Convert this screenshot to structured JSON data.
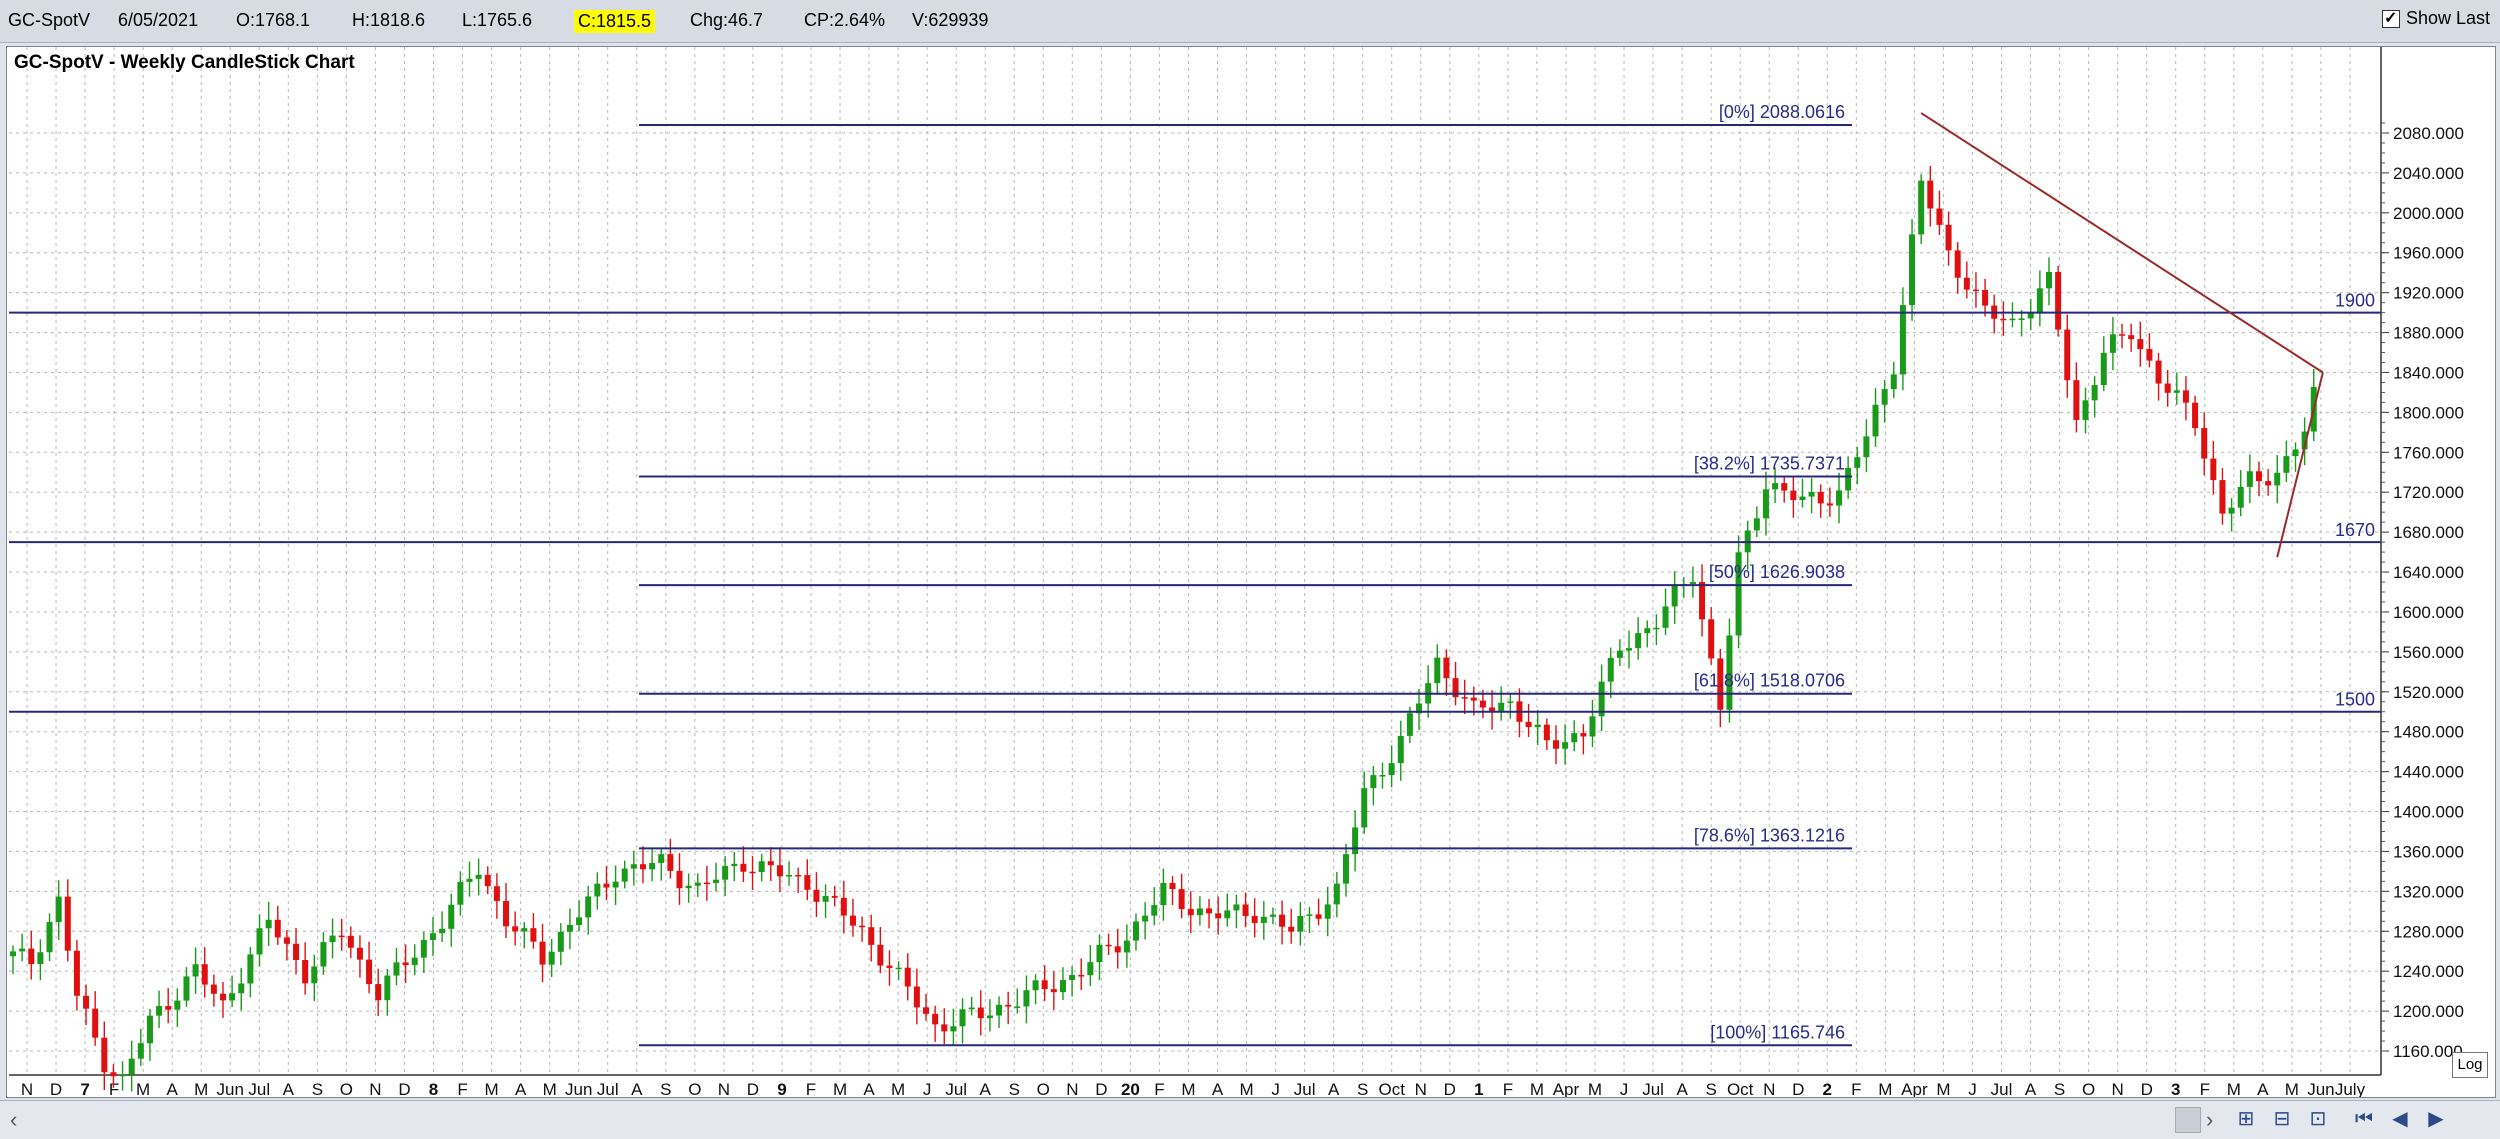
{
  "header": {
    "symbol": "GC-SpotV",
    "date": "6/05/2021",
    "open": "O:1768.1",
    "high": "H:1818.6",
    "low": "L:1765.6",
    "close": "C:1815.5",
    "change": "Chg:46.7",
    "change_pct": "CP:2.64%",
    "volume": "V:629939",
    "show_last_label": "Show Last"
  },
  "log_label": "Log",
  "colors": {
    "up": "#1a9a1a",
    "down": "#e01010",
    "hline": "#28287a",
    "trendline": "#9b2a2a",
    "label": "#2a2a8a",
    "highlight": "#ffff00"
  },
  "icons": [
    "scroll-left-icon",
    "scroll-right-icon",
    "zoom-in-icon",
    "zoom-out-icon",
    "fit-icon",
    "first-icon",
    "prev-icon",
    "next-icon"
  ],
  "chart_data": {
    "type": "candlestick",
    "title": "GC-SpotV - Weekly CandleStick Chart",
    "y_ticks": [
      1160,
      1200,
      1240,
      1280,
      1320,
      1360,
      1400,
      1440,
      1480,
      1520,
      1560,
      1600,
      1640,
      1680,
      1720,
      1760,
      1800,
      1840,
      1880,
      1920,
      1960,
      2000,
      2040,
      2080
    ],
    "y_tick_labels": [
      "1160.000",
      "1200.000",
      "1240.000",
      "1280.000",
      "1320.000",
      "1360.000",
      "1400.000",
      "1440.000",
      "1480.000",
      "1520.000",
      "1560.000",
      "1600.000",
      "1640.000",
      "1680.000",
      "1720.000",
      "1760.000",
      "1800.000",
      "1840.000",
      "1880.000",
      "1920.000",
      "1960.000",
      "2000.000",
      "2040.000",
      "2080.000"
    ],
    "ylim": [
      1120,
      2108
    ],
    "x_labels": [
      "N",
      "D",
      "7",
      "F",
      "M",
      "A",
      "M",
      "Jun",
      "Jul",
      "A",
      "S",
      "O",
      "N",
      "D",
      "8",
      "F",
      "M",
      "A",
      "M",
      "Jun",
      "Jul",
      "A",
      "S",
      "O",
      "N",
      "D",
      "9",
      "F",
      "M",
      "A",
      "M",
      "J",
      "Jul",
      "A",
      "S",
      "O",
      "N",
      "D",
      "20",
      "F",
      "M",
      "A",
      "M",
      "J",
      "Jul",
      "A",
      "S",
      "Oct",
      "N",
      "D",
      "1",
      "F",
      "M",
      "Apr",
      "M",
      "J",
      "Jul",
      "A",
      "S",
      "Oct",
      "N",
      "D",
      "2",
      "F",
      "M",
      "Apr",
      "M",
      "J",
      "Jul",
      "A",
      "S",
      "O",
      "N",
      "D",
      "3",
      "F",
      "M",
      "A",
      "M",
      "Jun",
      "July"
    ],
    "bold_x_labels": [
      "7",
      "8",
      "9",
      "20",
      "1",
      "2",
      "3"
    ],
    "fibonacci_levels": [
      {
        "label": "[0%] 2088.0616",
        "value": 2088.0616
      },
      {
        "label": "[38.2%] 1735.7371",
        "value": 1735.7371
      },
      {
        "label": "[50%] 1626.9038",
        "value": 1626.9038
      },
      {
        "label": "[61.8%] 1518.0706",
        "value": 1518.0706
      },
      {
        "label": "[78.6%] 1363.1216",
        "value": 1363.1216
      },
      {
        "label": "[100%] 1165.746",
        "value": 1165.746
      }
    ],
    "horizontal_lines": [
      {
        "label": "1900",
        "value": 1900
      },
      {
        "label": "1670",
        "value": 1670
      },
      {
        "label": "1500",
        "value": 1500
      }
    ],
    "trendlines": [
      {
        "from": [
          209,
          2100
        ],
        "to": [
          253,
          1840
        ]
      },
      {
        "from": [
          248,
          1655
        ],
        "to": [
          253,
          1840
        ]
      }
    ],
    "anchors": [
      {
        "i": 0,
        "v": 1255
      },
      {
        "i": 2,
        "v": 1250
      },
      {
        "i": 5,
        "v": 1310
      },
      {
        "i": 7,
        "v": 1215
      },
      {
        "i": 10,
        "v": 1150
      },
      {
        "i": 12,
        "v": 1130
      },
      {
        "i": 15,
        "v": 1190
      },
      {
        "i": 20,
        "v": 1240
      },
      {
        "i": 23,
        "v": 1205
      },
      {
        "i": 28,
        "v": 1290
      },
      {
        "i": 32,
        "v": 1238
      },
      {
        "i": 36,
        "v": 1280
      },
      {
        "i": 40,
        "v": 1218
      },
      {
        "i": 47,
        "v": 1290
      },
      {
        "i": 51,
        "v": 1345
      },
      {
        "i": 54,
        "v": 1290
      },
      {
        "i": 58,
        "v": 1255
      },
      {
        "i": 66,
        "v": 1340
      },
      {
        "i": 71,
        "v": 1348
      },
      {
        "i": 75,
        "v": 1322
      },
      {
        "i": 80,
        "v": 1350
      },
      {
        "i": 87,
        "v": 1328
      },
      {
        "i": 93,
        "v": 1280
      },
      {
        "i": 101,
        "v": 1185
      },
      {
        "i": 107,
        "v": 1200
      },
      {
        "i": 116,
        "v": 1235
      },
      {
        "i": 122,
        "v": 1275
      },
      {
        "i": 126,
        "v": 1320
      },
      {
        "i": 131,
        "v": 1295
      },
      {
        "i": 136,
        "v": 1300
      },
      {
        "i": 140,
        "v": 1280
      },
      {
        "i": 145,
        "v": 1320
      },
      {
        "i": 148,
        "v": 1420
      },
      {
        "i": 152,
        "v": 1470
      },
      {
        "i": 156,
        "v": 1550
      },
      {
        "i": 160,
        "v": 1500
      },
      {
        "i": 164,
        "v": 1510
      },
      {
        "i": 168,
        "v": 1465
      },
      {
        "i": 172,
        "v": 1480
      },
      {
        "i": 176,
        "v": 1565
      },
      {
        "i": 180,
        "v": 1590
      },
      {
        "i": 184,
        "v": 1640
      },
      {
        "i": 187,
        "v": 1505
      },
      {
        "i": 189,
        "v": 1650
      },
      {
        "i": 192,
        "v": 1730
      },
      {
        "i": 196,
        "v": 1710
      },
      {
        "i": 200,
        "v": 1720
      },
      {
        "i": 203,
        "v": 1775
      },
      {
        "i": 206,
        "v": 1850
      },
      {
        "i": 209,
        "v": 2030
      },
      {
        "i": 212,
        "v": 1960
      },
      {
        "i": 216,
        "v": 1900
      },
      {
        "i": 219,
        "v": 1890
      },
      {
        "i": 223,
        "v": 1930
      },
      {
        "i": 226,
        "v": 1790
      },
      {
        "i": 229,
        "v": 1860
      },
      {
        "i": 232,
        "v": 1880
      },
      {
        "i": 235,
        "v": 1835
      },
      {
        "i": 239,
        "v": 1790
      },
      {
        "i": 242,
        "v": 1700
      },
      {
        "i": 245,
        "v": 1730
      },
      {
        "i": 248,
        "v": 1740
      },
      {
        "i": 251,
        "v": 1780
      },
      {
        "i": 252,
        "v": 1815
      }
    ]
  }
}
